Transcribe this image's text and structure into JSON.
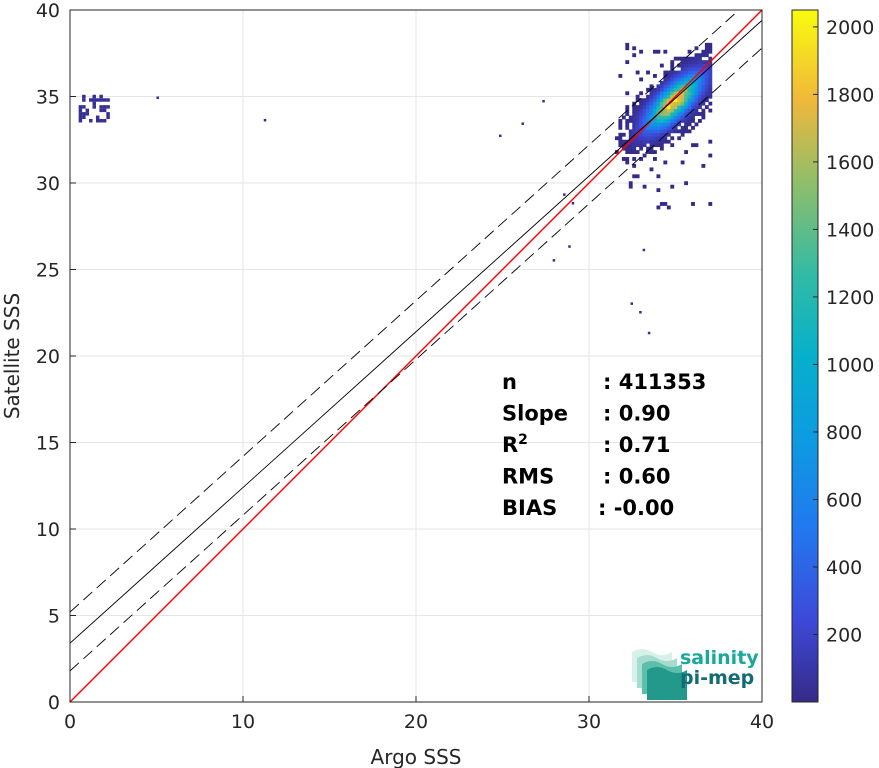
{
  "chart_data": {
    "type": "heatmap",
    "title": "",
    "xlabel": "Argo SSS",
    "ylabel": "Satellite SSS",
    "xlim": [
      0,
      40
    ],
    "ylim": [
      0,
      40
    ],
    "xticks": [
      0,
      10,
      20,
      30,
      40
    ],
    "yticks": [
      0,
      5,
      10,
      15,
      20,
      25,
      30,
      35,
      40
    ],
    "grid": true,
    "density": {
      "description_free": true,
      "main_cluster": {
        "center_x": 34.8,
        "center_y": 34.6,
        "x_range": [
          31.5,
          37.0
        ],
        "y_range": [
          28.5,
          38.0
        ],
        "peak_count": 2000
      },
      "outlier_cluster": {
        "x_range": [
          0.5,
          2.2
        ],
        "y_range": [
          33.5,
          35.0
        ]
      },
      "sparse_points": [
        [
          5.0,
          35.0
        ],
        [
          11.2,
          33.7
        ],
        [
          24.8,
          32.8
        ],
        [
          27.3,
          34.8
        ],
        [
          26.1,
          33.5
        ],
        [
          27.9,
          25.6
        ],
        [
          28.8,
          26.4
        ],
        [
          32.4,
          23.1
        ],
        [
          32.9,
          22.6
        ],
        [
          33.4,
          21.4
        ],
        [
          33.1,
          26.2
        ],
        [
          28.5,
          29.4
        ],
        [
          29.0,
          28.9
        ]
      ]
    },
    "lines": [
      {
        "kind": "identity",
        "color": "#ff0000",
        "style": "solid",
        "points": [
          [
            0,
            0
          ],
          [
            40,
            40
          ]
        ]
      },
      {
        "kind": "regression",
        "color": "#000000",
        "style": "solid",
        "slope": 0.9,
        "intercept": 3.4
      },
      {
        "kind": "regression-upper",
        "color": "#000000",
        "style": "dashed",
        "slope": 0.9,
        "intercept": 5.2
      },
      {
        "kind": "regression-lower",
        "color": "#000000",
        "style": "dashed",
        "slope": 0.9,
        "intercept": 1.8
      }
    ],
    "colorbar": {
      "min": 0,
      "max": 2050,
      "ticks": [
        200,
        400,
        600,
        800,
        1000,
        1200,
        1400,
        1600,
        1800,
        2000
      ],
      "colormap": "parula"
    },
    "stats": [
      {
        "label": "n",
        "value": ": 411353"
      },
      {
        "label": "Slope",
        "value": ": 0.90"
      },
      {
        "label": "R",
        "sup": "2",
        "value": ": 0.71"
      },
      {
        "label": "RMS",
        "value": ": 0.60"
      },
      {
        "label": "BIAS",
        "value": ": -0.00"
      }
    ]
  },
  "logo": {
    "line1": "salinity",
    "line2": "pi-mep",
    "color1": "#1aa89a",
    "color2": "#136b73"
  }
}
